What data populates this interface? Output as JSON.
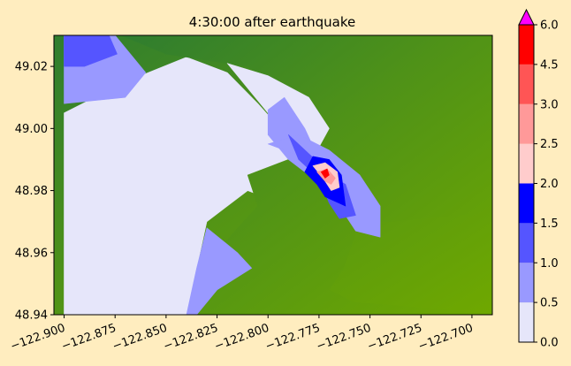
{
  "chart_data": {
    "type": "heatmap",
    "title": "4:30:00 after earthquake",
    "xlabel": "",
    "ylabel": "",
    "xlim": [
      -122.905,
      -122.69
    ],
    "ylim": [
      48.94,
      49.03
    ],
    "x_ticks": [
      -122.9,
      -122.875,
      -122.85,
      -122.825,
      -122.8,
      -122.775,
      -122.75,
      -122.725,
      -122.7
    ],
    "x_tick_labels": [
      "−122.900",
      "−122.875",
      "−122.850",
      "−122.825",
      "−122.800",
      "−122.775",
      "−122.750",
      "−122.725",
      "−122.700"
    ],
    "y_ticks": [
      48.94,
      48.96,
      48.98,
      49.0,
      49.02
    ],
    "y_tick_labels": [
      "48.94",
      "48.96",
      "48.98",
      "49.00",
      "49.02"
    ],
    "grid": false,
    "colorbar": {
      "levels": [
        0.0,
        0.5,
        1.0,
        1.5,
        2.0,
        2.5,
        3.0,
        4.5,
        6.0
      ],
      "tick_labels": [
        "0.0",
        "0.5",
        "1.0",
        "1.5",
        "2.0",
        "2.5",
        "3.0",
        "4.5",
        "6.0"
      ],
      "colors": [
        "#e6e6fa",
        "#9999ff",
        "#5555ff",
        "#0000ff",
        "#ffcccc",
        "#ff9999",
        "#ff5555",
        "#ff0000"
      ],
      "extend_max_color": "#ff00ff"
    },
    "land_colors": {
      "low": "#6fa800",
      "high": "#2f7d2f"
    },
    "regions": [
      {
        "kind": "water",
        "level": 0,
        "points": [
          [
            -122.9,
            49.005
          ],
          [
            -122.87,
            49.015
          ],
          [
            -122.84,
            49.023
          ],
          [
            -122.82,
            49.018
          ],
          [
            -122.805,
            49.008
          ],
          [
            -122.79,
            48.997
          ],
          [
            -122.78,
            48.992
          ],
          [
            -122.772,
            48.986
          ],
          [
            -122.77,
            48.975
          ],
          [
            -122.775,
            48.968
          ],
          [
            -122.79,
            48.975
          ],
          [
            -122.81,
            48.98
          ],
          [
            -122.83,
            48.97
          ],
          [
            -122.835,
            48.955
          ],
          [
            -122.84,
            48.94
          ],
          [
            -122.9,
            48.94
          ]
        ]
      },
      {
        "kind": "land",
        "points": [
          [
            -122.872,
            49.03
          ],
          [
            -122.69,
            49.03
          ],
          [
            -122.69,
            48.973
          ],
          [
            -122.74,
            48.97
          ],
          [
            -122.755,
            48.97
          ],
          [
            -122.763,
            48.955
          ],
          [
            -122.77,
            48.948
          ],
          [
            -122.758,
            48.944
          ],
          [
            -122.72,
            48.942
          ],
          [
            -122.69,
            48.94
          ],
          [
            -122.69,
            48.94
          ],
          [
            -122.84,
            48.94
          ],
          [
            -122.835,
            48.948
          ],
          [
            -122.823,
            48.962
          ],
          [
            -122.812,
            48.97
          ],
          [
            -122.805,
            48.975
          ],
          [
            -122.81,
            48.985
          ],
          [
            -122.79,
            48.99
          ],
          [
            -122.778,
            48.995
          ],
          [
            -122.785,
            49.005
          ],
          [
            -122.79,
            49.012
          ],
          [
            -122.81,
            49.02
          ],
          [
            -122.85,
            49.024
          ]
        ]
      },
      {
        "kind": "water",
        "level": 0,
        "points": [
          [
            -122.82,
            49.021
          ],
          [
            -122.8,
            49.017
          ],
          [
            -122.78,
            49.01
          ],
          [
            -122.77,
            49.0
          ],
          [
            -122.775,
            48.994
          ],
          [
            -122.79,
            48.996
          ],
          [
            -122.8,
            49.005
          ]
        ]
      },
      {
        "kind": "water",
        "level": 1,
        "points": [
          [
            -122.9,
            49.03
          ],
          [
            -122.875,
            49.03
          ],
          [
            -122.86,
            49.018
          ],
          [
            -122.87,
            49.01
          ],
          [
            -122.9,
            49.008
          ]
        ]
      },
      {
        "kind": "water",
        "level": 2,
        "points": [
          [
            -122.9,
            49.03
          ],
          [
            -122.878,
            49.03
          ],
          [
            -122.874,
            49.024
          ],
          [
            -122.89,
            49.02
          ],
          [
            -122.9,
            49.02
          ]
        ]
      },
      {
        "kind": "water",
        "level": 1,
        "points": [
          [
            -122.792,
            49.01
          ],
          [
            -122.782,
            49.0
          ],
          [
            -122.775,
            48.99
          ],
          [
            -122.78,
            48.985
          ],
          [
            -122.79,
            48.99
          ],
          [
            -122.8,
            48.998
          ],
          [
            -122.8,
            49.006
          ]
        ]
      },
      {
        "kind": "water",
        "level": 1,
        "points": [
          [
            -122.8,
            48.995
          ],
          [
            -122.78,
            48.99
          ],
          [
            -122.77,
            48.98
          ],
          [
            -122.76,
            48.97
          ],
          [
            -122.757,
            48.967
          ],
          [
            -122.745,
            48.965
          ],
          [
            -122.745,
            48.975
          ],
          [
            -122.755,
            48.985
          ],
          [
            -122.77,
            48.993
          ],
          [
            -122.785,
            48.998
          ]
        ]
      },
      {
        "kind": "water",
        "level": 1,
        "points": [
          [
            -122.83,
            48.968
          ],
          [
            -122.815,
            48.96
          ],
          [
            -122.808,
            48.955
          ],
          [
            -122.825,
            48.948
          ],
          [
            -122.835,
            48.94
          ],
          [
            -122.84,
            48.94
          ],
          [
            -122.835,
            48.955
          ]
        ]
      },
      {
        "kind": "water",
        "level": 2,
        "points": [
          [
            -122.79,
            48.998
          ],
          [
            -122.777,
            48.99
          ],
          [
            -122.77,
            48.985
          ],
          [
            -122.762,
            48.982
          ],
          [
            -122.757,
            48.972
          ],
          [
            -122.765,
            48.971
          ],
          [
            -122.77,
            48.976
          ],
          [
            -122.775,
            48.984
          ],
          [
            -122.785,
            48.99
          ]
        ]
      },
      {
        "kind": "water",
        "level": 3,
        "points": [
          [
            -122.782,
            48.986
          ],
          [
            -122.776,
            48.982
          ],
          [
            -122.772,
            48.978
          ],
          [
            -122.762,
            48.975
          ],
          [
            -122.764,
            48.985
          ],
          [
            -122.77,
            48.99
          ],
          [
            -122.778,
            48.991
          ]
        ]
      },
      {
        "kind": "water",
        "level": 4,
        "points": [
          [
            -122.778,
            48.988
          ],
          [
            -122.773,
            48.984
          ],
          [
            -122.769,
            48.98
          ],
          [
            -122.765,
            48.981
          ],
          [
            -122.766,
            48.986
          ],
          [
            -122.772,
            48.989
          ]
        ]
      },
      {
        "kind": "water",
        "level": 5,
        "points": [
          [
            -122.776,
            48.986
          ],
          [
            -122.772,
            48.983
          ],
          [
            -122.769,
            48.982
          ],
          [
            -122.767,
            48.984
          ],
          [
            -122.771,
            48.987
          ]
        ]
      },
      {
        "kind": "water",
        "level": 7,
        "points": [
          [
            -122.774,
            48.986
          ],
          [
            -122.772,
            48.984
          ],
          [
            -122.77,
            48.985
          ],
          [
            -122.771,
            48.987
          ]
        ]
      }
    ]
  }
}
